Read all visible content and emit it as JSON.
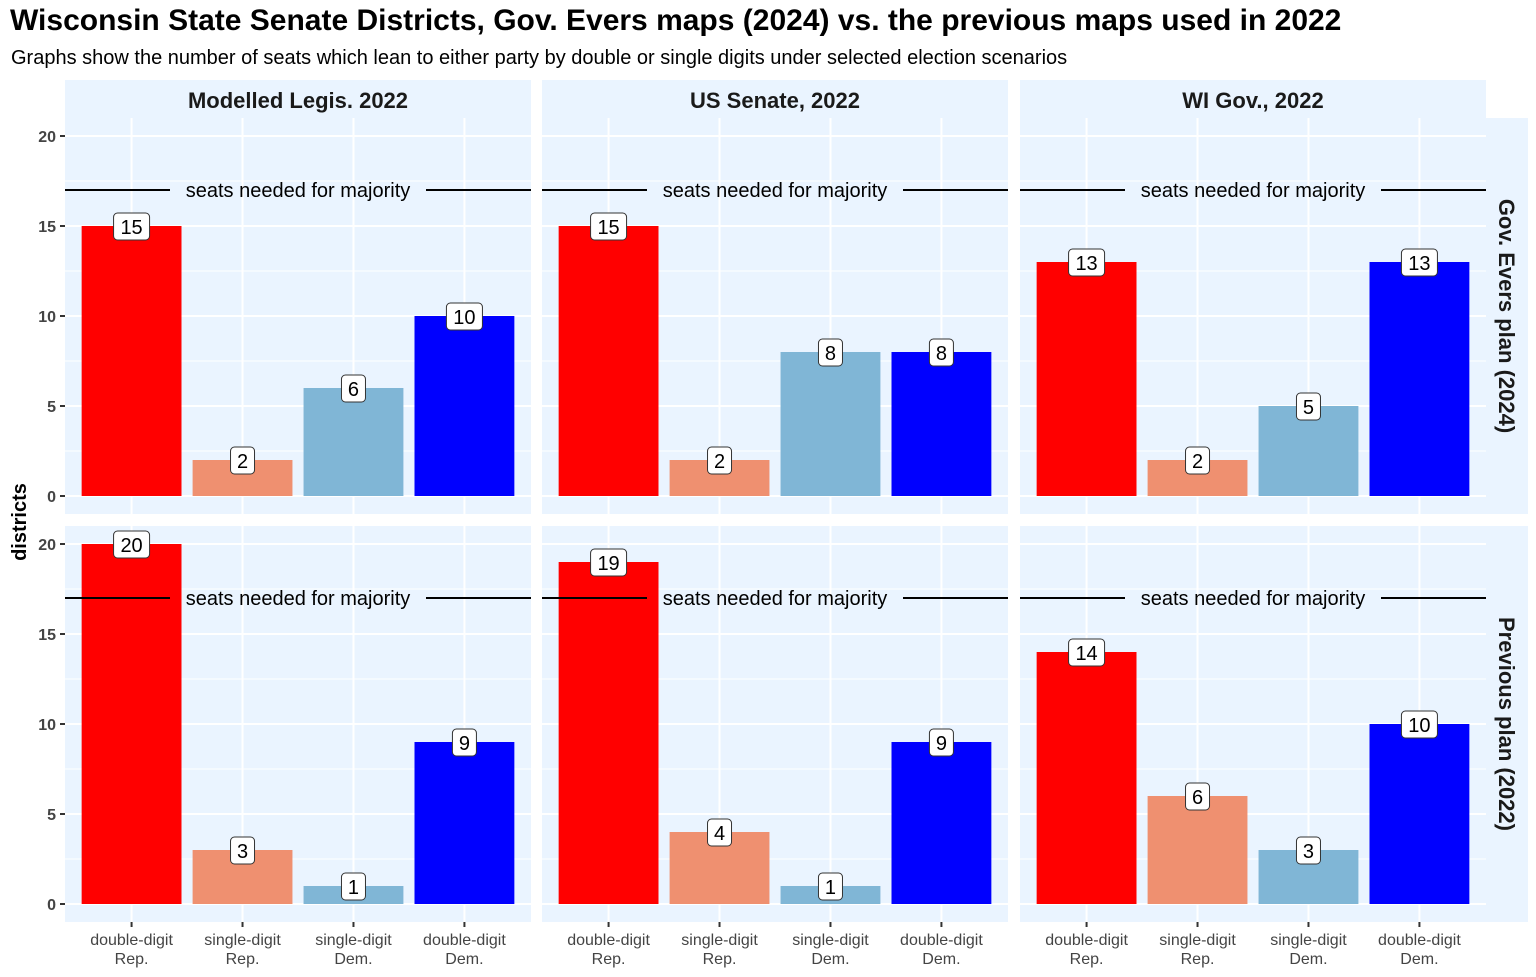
{
  "title": "Wisconsin State Senate Districts, Gov. Evers maps (2024) vs. the previous maps used in 2022",
  "subtitle": "Graphs show the number of seats which lean to either party by double or single digits under selected election scenarios",
  "chart_data": {
    "type": "bar",
    "facet_columns": [
      "Modelled Legis. 2022",
      "US Senate, 2022",
      "WI Gov., 2022"
    ],
    "facet_rows": [
      "Gov. Evers plan (2024)",
      "Previous plan (2022)"
    ],
    "categories": [
      [
        "double-digit",
        "Rep."
      ],
      [
        "single-digit",
        "Rep."
      ],
      [
        "single-digit",
        "Dem."
      ],
      [
        "double-digit",
        "Dem."
      ]
    ],
    "category_colors": [
      "#FF0000",
      "#EF9070",
      "#80B6D6",
      "#0000FF"
    ],
    "ylabel": "districts",
    "xlabel": "",
    "ylim": [
      -1,
      21
    ],
    "yticks": [
      0,
      5,
      10,
      15,
      20
    ],
    "grid": true,
    "panel_background": "#EAF4FF",
    "reference_line": {
      "value": 17,
      "label": "seats needed for majority"
    },
    "values": [
      [
        [
          15,
          2,
          6,
          10
        ],
        [
          15,
          2,
          8,
          8
        ],
        [
          13,
          2,
          5,
          13
        ]
      ],
      [
        [
          20,
          3,
          1,
          9
        ],
        [
          19,
          4,
          1,
          9
        ],
        [
          14,
          6,
          3,
          10
        ]
      ]
    ]
  }
}
